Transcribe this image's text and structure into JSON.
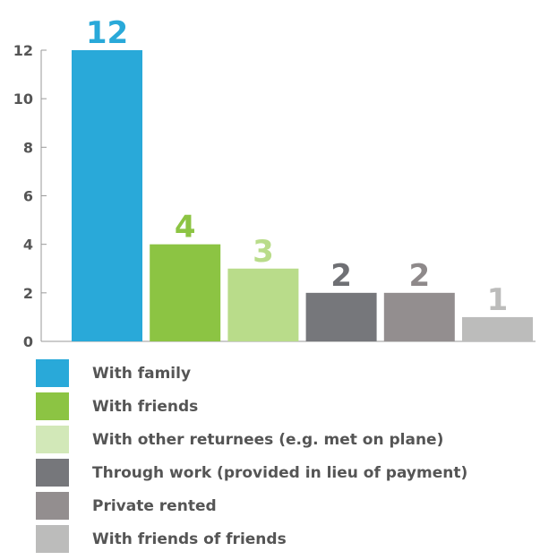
{
  "chart_data": {
    "type": "bar",
    "categories": [
      "With family",
      "With friends",
      "With other returnees (e.g. met on plane)",
      "Through work (provided in lieu of payment)",
      "Private rented",
      "With friends of friends"
    ],
    "values": [
      12,
      4,
      3,
      2,
      2,
      1
    ],
    "data_labels": [
      "12",
      "4",
      "3",
      "2",
      "2",
      "1"
    ],
    "colors": [
      "#29a9d9",
      "#8cc443",
      "#b9dc8a",
      "#76777b",
      "#938e8f",
      "#bcbcbb"
    ],
    "label_colors": [
      "#29a9d9",
      "#8cc443",
      "#b9dc8a",
      "#6f7074",
      "#8e898a",
      "#bcbcbb"
    ],
    "legend_swatch_colors": [
      "#29a9d9",
      "#8cc443",
      "#d2e8b8",
      "#76777b",
      "#938e8f",
      "#bcbcbb"
    ],
    "yticks": [
      "0",
      "2",
      "4",
      "6",
      "8",
      "10",
      "12"
    ],
    "ylim": [
      0,
      12
    ],
    "title": "",
    "xlabel": "",
    "ylabel": "",
    "grid": false,
    "legend_position": "bottom"
  }
}
